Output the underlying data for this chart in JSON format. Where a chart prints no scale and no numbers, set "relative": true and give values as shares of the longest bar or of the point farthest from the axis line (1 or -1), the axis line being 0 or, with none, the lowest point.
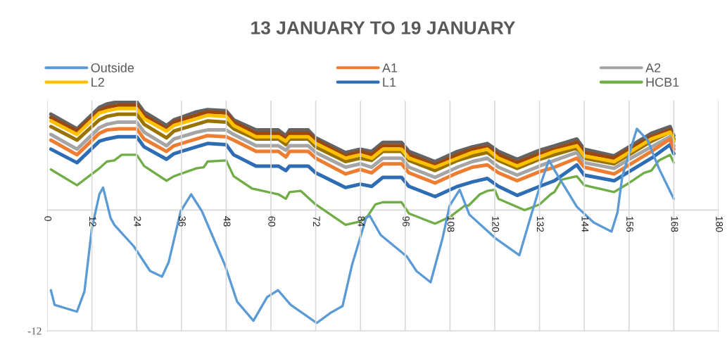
{
  "chart_data": {
    "type": "line",
    "title": "13 JANUARY TO 19 JANUARY",
    "relative": true,
    "xlim": [
      0,
      180
    ],
    "xticks": [
      0,
      12,
      24,
      36,
      48,
      60,
      72,
      84,
      96,
      108,
      120,
      132,
      144,
      156,
      168,
      180
    ],
    "annotations": [
      "-12"
    ],
    "grid": "x",
    "legend": "top",
    "marker": "none",
    "line_style": "solid",
    "series": [
      {
        "name": "Outside",
        "color": "#5b9bd5",
        "x": [
          1,
          2,
          8,
          10,
          12,
          14,
          15,
          17,
          18,
          23.2,
          27.6,
          30.8,
          32.6,
          35.8,
          38.6,
          41.5,
          47.7,
          50.9,
          55.3,
          59,
          61.9,
          65.3,
          72.3,
          76,
          79.2,
          81.7,
          85.5,
          86.5,
          89.4,
          96.4,
          99,
          102.8,
          106,
          107.9,
          110.6,
          113.2,
          120.2,
          126.6,
          129.8,
          132.1,
          134.5,
          137,
          142,
          146.5,
          151.3,
          152.9,
          154.2,
          158.1,
          161,
          164,
          168
        ],
        "values": [
          -0.71,
          -0.84,
          -0.9,
          -0.72,
          -0.16,
          0.14,
          0.2,
          -0.07,
          -0.13,
          -0.32,
          -0.54,
          -0.59,
          -0.46,
          -0.01,
          0.14,
          -0.01,
          -0.49,
          -0.81,
          -0.98,
          -0.77,
          -0.71,
          -0.84,
          -1,
          -0.91,
          -0.85,
          -0.49,
          -0.07,
          -0.05,
          -0.22,
          -0.41,
          -0.54,
          -0.64,
          -0.25,
          0.04,
          0.18,
          -0.04,
          -0.25,
          -0.4,
          -0.04,
          0.21,
          0.44,
          0.3,
          0.03,
          -0.11,
          -0.19,
          -0.02,
          0.3,
          0.72,
          0.62,
          0.37,
          0.1
        ]
      },
      {
        "name": "A1",
        "color": "#ed7d31",
        "values": [
          0.62,
          0.49,
          0.68,
          0.71,
          0.72,
          0.72,
          0.63,
          0.52,
          0.57,
          0.63,
          0.66,
          0.65,
          0.62,
          0.52,
          0.52,
          0.47,
          0.52,
          0.52,
          0.46,
          0.32,
          0.36,
          0.33,
          0.41,
          0.41,
          0.33,
          0.24,
          0.33,
          0.38,
          0.4,
          0.33,
          0.26,
          0.34,
          0.38,
          0.46,
          0.38,
          0.32,
          0.4,
          0.52,
          0.63,
          0.54
        ]
      },
      {
        "name": "A2",
        "color": "#a5a5a5",
        "values": [
          0.67,
          0.54,
          0.73,
          0.76,
          0.78,
          0.78,
          0.69,
          0.57,
          0.63,
          0.69,
          0.71,
          0.71,
          0.67,
          0.57,
          0.57,
          0.53,
          0.57,
          0.57,
          0.51,
          0.38,
          0.41,
          0.38,
          0.46,
          0.46,
          0.38,
          0.29,
          0.38,
          0.43,
          0.46,
          0.38,
          0.31,
          0.39,
          0.44,
          0.51,
          0.42,
          0.37,
          0.45,
          0.56,
          0.65,
          0.57
        ]
      },
      {
        "name": "L2",
        "color": "#ffc000",
        "values": [
          0.79,
          0.67,
          0.86,
          0.88,
          0.9,
          0.9,
          0.81,
          0.7,
          0.75,
          0.81,
          0.84,
          0.83,
          0.75,
          0.65,
          0.65,
          0.61,
          0.65,
          0.65,
          0.59,
          0.46,
          0.49,
          0.46,
          0.54,
          0.54,
          0.46,
          0.38,
          0.46,
          0.51,
          0.54,
          0.46,
          0.39,
          0.47,
          0.52,
          0.57,
          0.48,
          0.43,
          0.51,
          0.63,
          0.69,
          0.61
        ]
      },
      {
        "name": "L1",
        "color": "#2e6db4",
        "values": [
          0.54,
          0.42,
          0.61,
          0.63,
          0.65,
          0.65,
          0.56,
          0.45,
          0.5,
          0.56,
          0.59,
          0.58,
          0.49,
          0.39,
          0.39,
          0.35,
          0.39,
          0.39,
          0.33,
          0.2,
          0.23,
          0.21,
          0.29,
          0.29,
          0.21,
          0.12,
          0.21,
          0.25,
          0.28,
          0.21,
          0.13,
          0.21,
          0.26,
          0.4,
          0.31,
          0.26,
          0.34,
          0.46,
          0.58,
          0.5
        ]
      },
      {
        "name": "HCB1",
        "color": "#70ad47",
        "x": [
          1,
          8,
          10,
          14,
          16,
          18,
          20,
          24,
          26,
          32,
          34,
          40,
          42,
          43,
          48,
          50,
          55,
          62,
          64,
          65,
          68,
          72,
          76,
          80,
          84,
          86,
          88,
          90,
          95,
          97,
          104,
          108,
          112,
          113,
          116,
          118,
          120,
          121,
          128,
          132,
          135,
          136,
          138,
          142,
          144,
          152,
          156,
          160,
          162,
          164,
          167,
          168
        ],
        "values": [
          0.36,
          0.22,
          0.27,
          0.37,
          0.43,
          0.44,
          0.49,
          0.49,
          0.39,
          0.26,
          0.3,
          0.37,
          0.38,
          0.43,
          0.44,
          0.3,
          0.19,
          0.14,
          0.1,
          0.16,
          0.17,
          0.05,
          -0.04,
          -0.13,
          -0.1,
          -0.05,
          0.05,
          0.07,
          0.07,
          -0.03,
          -0.12,
          -0.06,
          0.04,
          0.04,
          0.14,
          0.17,
          0.18,
          0.1,
          0.0,
          0.05,
          0.14,
          0.16,
          0.27,
          0.3,
          0.22,
          0.16,
          0.24,
          0.33,
          0.35,
          0.44,
          0.49,
          0.42
        ]
      },
      {
        "color": "#997300",
        "values": [
          0.74,
          0.62,
          0.8,
          0.83,
          0.85,
          0.85,
          0.76,
          0.64,
          0.7,
          0.76,
          0.79,
          0.78,
          0.72,
          0.63,
          0.63,
          0.58,
          0.63,
          0.63,
          0.56,
          0.43,
          0.46,
          0.44,
          0.52,
          0.52,
          0.44,
          0.35,
          0.44,
          0.48,
          0.51,
          0.44,
          0.37,
          0.45,
          0.49,
          0.55,
          0.46,
          0.41,
          0.49,
          0.61,
          0.69,
          0.61
        ]
      },
      {
        "color": "#9e480e",
        "values": [
          0.82,
          0.7,
          0.88,
          0.91,
          0.93,
          0.93,
          0.84,
          0.72,
          0.78,
          0.84,
          0.87,
          0.86,
          0.78,
          0.68,
          0.68,
          0.63,
          0.68,
          0.68,
          0.62,
          0.48,
          0.52,
          0.49,
          0.57,
          0.57,
          0.49,
          0.4,
          0.49,
          0.54,
          0.56,
          0.49,
          0.42,
          0.5,
          0.54,
          0.6,
          0.51,
          0.46,
          0.54,
          0.65,
          0.71,
          0.63
        ]
      },
      {
        "color": "#636363",
        "values": [
          0.85,
          0.72,
          0.91,
          0.94,
          0.96,
          0.96,
          0.87,
          0.75,
          0.8,
          0.87,
          0.89,
          0.88,
          0.8,
          0.71,
          0.71,
          0.66,
          0.71,
          0.71,
          0.64,
          0.51,
          0.54,
          0.52,
          0.6,
          0.6,
          0.52,
          0.43,
          0.52,
          0.56,
          0.59,
          0.52,
          0.45,
          0.53,
          0.57,
          0.63,
          0.54,
          0.48,
          0.56,
          0.68,
          0.74,
          0.66
        ]
      }
    ],
    "x": [
      1,
      8,
      14,
      16,
      19,
      24,
      26,
      32,
      34,
      40,
      43,
      48,
      50,
      56,
      62,
      64,
      65,
      70,
      72,
      80,
      84,
      87,
      90,
      95,
      97,
      104,
      110,
      114,
      118,
      121,
      126,
      132,
      136,
      142,
      144,
      152,
      156,
      162,
      167,
      168
    ]
  }
}
